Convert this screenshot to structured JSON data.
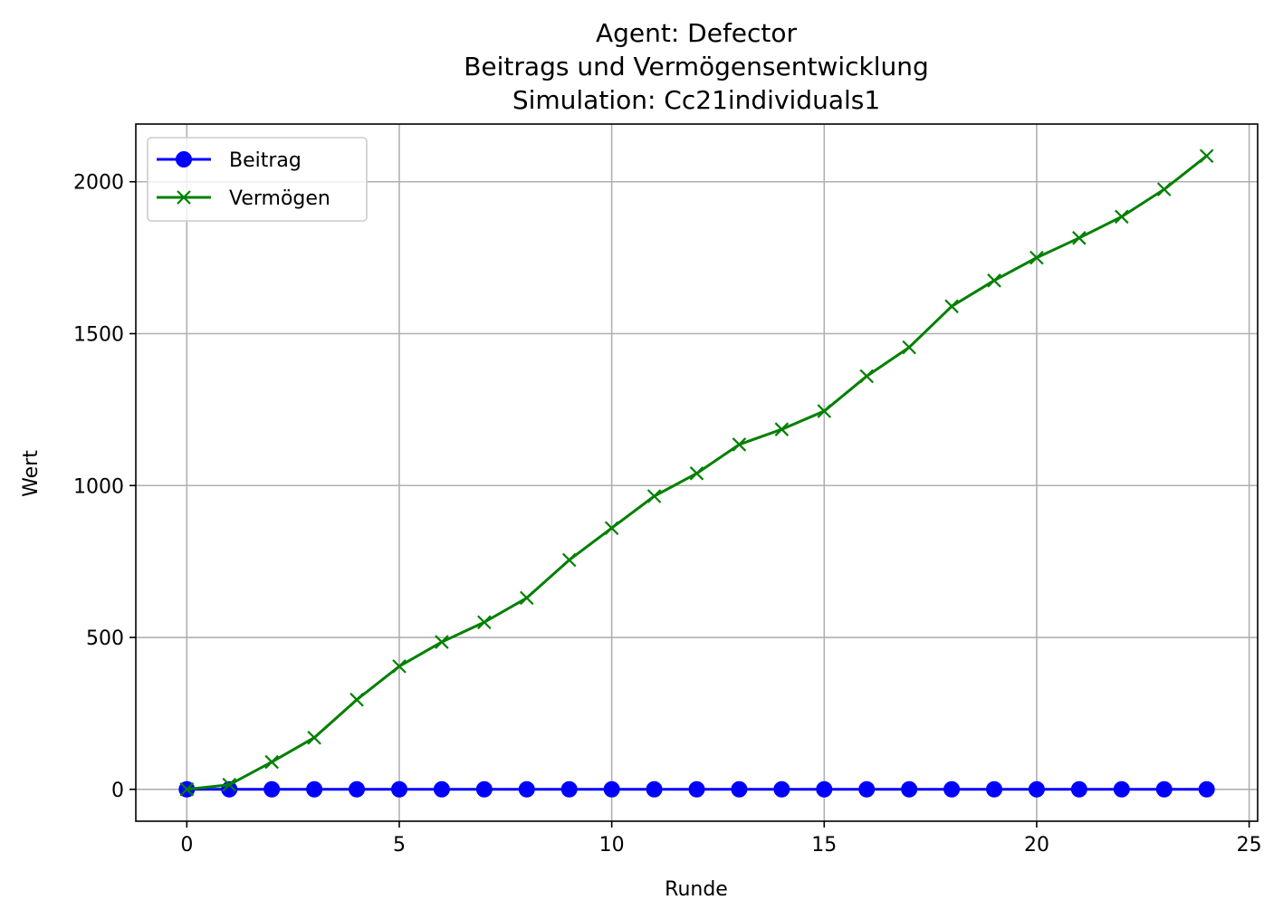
{
  "chart_data": {
    "type": "line",
    "title_lines": [
      "Agent: Defector",
      "Beitrags und Vermögensentwicklung",
      "Simulation: Cc21individuals1"
    ],
    "xlabel": "Runde",
    "ylabel": "Wert",
    "xlim": [
      -1.2,
      25.2
    ],
    "ylim": [
      -105,
      2190
    ],
    "xticks": [
      0,
      5,
      10,
      15,
      20,
      25
    ],
    "yticks": [
      0,
      500,
      1000,
      1500,
      2000
    ],
    "grid": true,
    "legend_position": "upper-left",
    "x": [
      0,
      1,
      2,
      3,
      4,
      5,
      6,
      7,
      8,
      9,
      10,
      11,
      12,
      13,
      14,
      15,
      16,
      17,
      18,
      19,
      20,
      21,
      22,
      23,
      24
    ],
    "series": [
      {
        "name": "Beitrag",
        "color": "#0000ff",
        "marker": "circle",
        "values": [
          0,
          0,
          0,
          0,
          0,
          0,
          0,
          0,
          0,
          0,
          0,
          0,
          0,
          0,
          0,
          0,
          0,
          0,
          0,
          0,
          0,
          0,
          0,
          0,
          0
        ]
      },
      {
        "name": "Vermögen",
        "color": "#008000",
        "marker": "x",
        "values": [
          0,
          15,
          90,
          170,
          295,
          405,
          485,
          550,
          630,
          755,
          860,
          965,
          1040,
          1135,
          1185,
          1245,
          1360,
          1455,
          1590,
          1675,
          1750,
          1815,
          1885,
          1975,
          2085
        ]
      }
    ]
  }
}
